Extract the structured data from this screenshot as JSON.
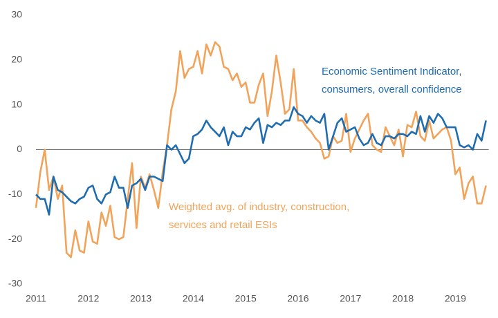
{
  "chart_data": {
    "type": "line",
    "x": [
      2011,
      2011.083,
      2011.167,
      2011.25,
      2011.333,
      2011.417,
      2011.5,
      2011.583,
      2011.667,
      2011.75,
      2011.833,
      2011.917,
      2012,
      2012.083,
      2012.167,
      2012.25,
      2012.333,
      2012.417,
      2012.5,
      2012.583,
      2012.667,
      2012.75,
      2012.833,
      2012.917,
      2013,
      2013.083,
      2013.167,
      2013.25,
      2013.333,
      2013.417,
      2013.5,
      2013.583,
      2013.667,
      2013.75,
      2013.833,
      2013.917,
      2014,
      2014.083,
      2014.167,
      2014.25,
      2014.333,
      2014.417,
      2014.5,
      2014.583,
      2014.667,
      2014.75,
      2014.833,
      2014.917,
      2015,
      2015.083,
      2015.167,
      2015.25,
      2015.333,
      2015.417,
      2015.5,
      2015.583,
      2015.667,
      2015.75,
      2015.833,
      2015.917,
      2016,
      2016.083,
      2016.167,
      2016.25,
      2016.333,
      2016.417,
      2016.5,
      2016.583,
      2016.667,
      2016.75,
      2016.833,
      2016.917,
      2017,
      2017.083,
      2017.167,
      2017.25,
      2017.333,
      2017.417,
      2017.5,
      2017.583,
      2017.667,
      2017.75,
      2017.833,
      2017.917,
      2018,
      2018.083,
      2018.167,
      2018.25,
      2018.333,
      2018.417,
      2018.5,
      2018.583,
      2018.667,
      2018.75,
      2018.833,
      2018.917,
      2019,
      2019.083,
      2019.167,
      2019.25,
      2019.333,
      2019.417,
      2019.5,
      2019.583
    ],
    "series": [
      {
        "name": "Weighted avg. of industry, construction, services and retail ESIs",
        "color": "#f2a35a",
        "values": [
          -13,
          -5,
          0,
          -9,
          -6,
          -11,
          -8,
          -23,
          -24,
          -18,
          -22.5,
          -23,
          -16,
          -20.5,
          -21,
          -14,
          -17,
          -12.5,
          -19.5,
          -20,
          -19.5,
          -11,
          -3,
          -17.5,
          -6,
          -8.5,
          -5.5,
          -9,
          -13,
          -5,
          1,
          9,
          13,
          22,
          16,
          18,
          18.5,
          22,
          17,
          23.5,
          21,
          24,
          23,
          18.5,
          18,
          15.5,
          17,
          14,
          15,
          10.5,
          10.5,
          14.5,
          17,
          7.5,
          13,
          21,
          15,
          8,
          9,
          18,
          6.5,
          6.5,
          5,
          4,
          2.5,
          1.5,
          -2,
          -1.5,
          3,
          1.5,
          2,
          8,
          -0.5,
          2.5,
          4.5,
          6.5,
          8,
          1,
          0,
          -0.5,
          5,
          3,
          1,
          4.5,
          -1.5,
          5.5,
          5,
          8.5,
          3,
          2,
          6.5,
          2.5,
          3.5,
          4.5,
          5,
          2,
          -5.5,
          -4,
          -11,
          -7.5,
          -6,
          -12,
          -12,
          -8
        ]
      },
      {
        "name": "Economic Sentiment Indicator, consumers, overall confidence",
        "color": "#1f6cb0",
        "values": [
          -10,
          -11,
          -11,
          -14.5,
          -6,
          -9,
          -9.5,
          -10.5,
          -11.5,
          -12,
          -11,
          -10.5,
          -8.5,
          -8,
          -11,
          -12,
          -10,
          -9.5,
          -6,
          -8.5,
          -8.5,
          -13,
          -8,
          -7.5,
          -6.5,
          -9,
          -6,
          -6,
          -6.5,
          -7,
          1,
          0,
          1,
          -1,
          -3,
          -2,
          3,
          3.5,
          4.5,
          6.5,
          5,
          4,
          3,
          5,
          1,
          4,
          3,
          3,
          5,
          4.5,
          6,
          7,
          1.5,
          5.5,
          5,
          6,
          5.5,
          6.5,
          6.5,
          9.5,
          8,
          7.5,
          6,
          7.5,
          6.5,
          6,
          8,
          0,
          3,
          6,
          7,
          4,
          4.5,
          5,
          2.5,
          1,
          1.5,
          3.5,
          1.5,
          1,
          3,
          3,
          2.5,
          3.5,
          3.5,
          3,
          4,
          3.5,
          7.5,
          4,
          7.5,
          6,
          8,
          7,
          5,
          5,
          5,
          1,
          0.5,
          1,
          0,
          3.5,
          2,
          6.5
        ]
      }
    ],
    "annotations": [
      {
        "lines": [
          "Economic Sentiment Indicator,",
          "consumers, overall confidence"
        ],
        "color": "#1f6cb0"
      },
      {
        "lines": [
          "Weighted avg. of industry, construction,",
          "services and retail ESIs"
        ],
        "color": "#f2a35a"
      }
    ],
    "xlim": [
      2011,
      2019.583
    ],
    "xticks": [
      2011,
      2012,
      2013,
      2014,
      2015,
      2016,
      2017,
      2018,
      2019
    ],
    "ylim": [
      -30,
      30
    ],
    "yticks": [
      -30,
      -20,
      -10,
      0,
      10,
      20,
      30
    ],
    "grid": false
  }
}
